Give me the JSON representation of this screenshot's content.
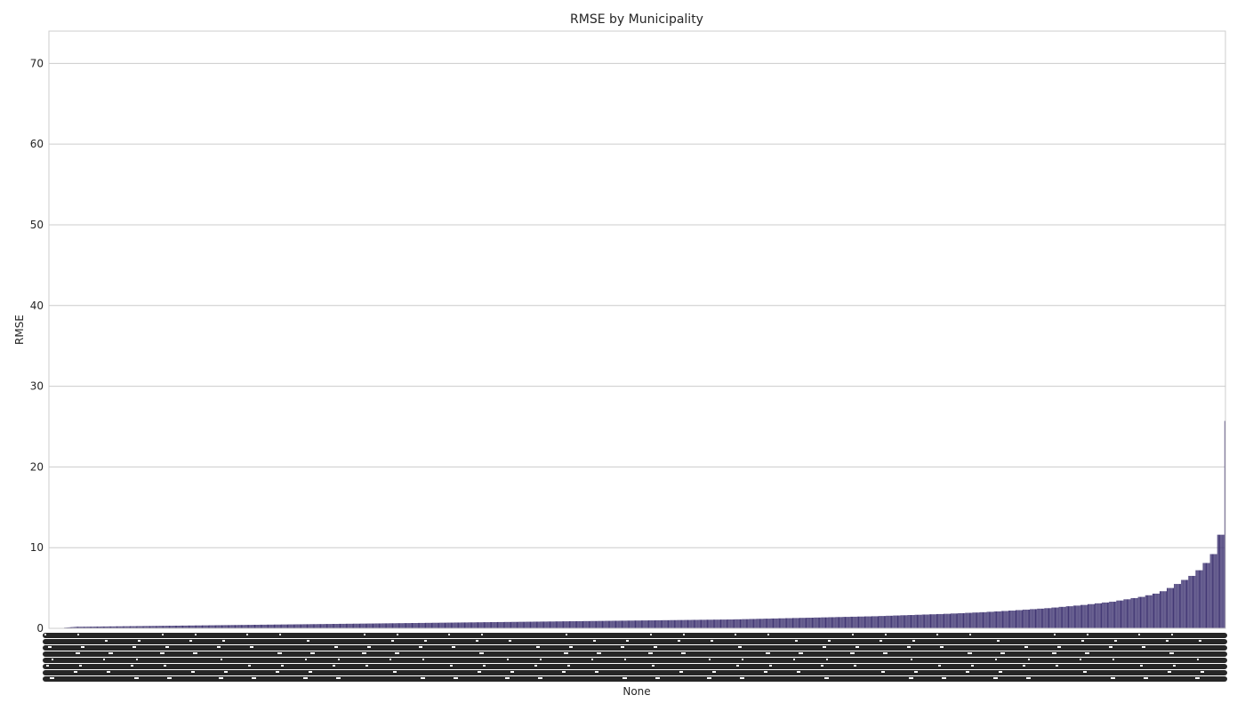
{
  "chart_data": {
    "type": "bar",
    "title": "RMSE by Municipality",
    "xlabel": "None",
    "ylabel": "RMSE",
    "ylim": [
      0,
      74
    ],
    "yticks": [
      0,
      10,
      20,
      30,
      40,
      50,
      60,
      70
    ],
    "grid": "horizontal",
    "bar_color": "#3f3472",
    "x_tick_labels": "dense, illegible",
    "values": [
      0.08,
      0.09,
      0.1,
      0.11,
      0.12,
      0.13,
      0.14,
      0.15,
      0.16,
      0.17,
      0.18,
      0.19,
      0.2,
      0.2,
      0.2,
      0.2,
      0.2,
      0.2,
      0.2,
      0.2,
      0.2,
      0.2,
      0.21,
      0.21,
      0.21,
      0.21,
      0.21,
      0.21,
      0.21,
      0.22,
      0.22,
      0.22,
      0.22,
      0.22,
      0.22,
      0.22,
      0.23,
      0.23,
      0.23,
      0.23,
      0.23,
      0.23,
      0.23,
      0.24,
      0.24,
      0.24,
      0.24,
      0.24,
      0.24,
      0.24,
      0.25,
      0.25,
      0.25,
      0.25,
      0.25,
      0.25,
      0.25,
      0.26,
      0.26,
      0.26,
      0.26,
      0.26,
      0.26,
      0.26,
      0.27,
      0.27,
      0.27,
      0.27,
      0.27,
      0.27,
      0.27,
      0.28,
      0.28,
      0.28,
      0.28,
      0.28,
      0.28,
      0.28,
      0.29,
      0.29,
      0.29,
      0.29,
      0.29,
      0.29,
      0.29,
      0.3,
      0.3,
      0.3,
      0.3,
      0.3,
      0.3,
      0.3,
      0.31,
      0.31,
      0.31,
      0.31,
      0.31,
      0.31,
      0.31,
      0.32,
      0.32,
      0.32,
      0.32,
      0.32,
      0.32,
      0.32,
      0.33,
      0.33,
      0.33,
      0.33,
      0.33,
      0.33,
      0.33,
      0.34,
      0.34,
      0.34,
      0.34,
      0.34,
      0.34,
      0.34,
      0.35,
      0.35,
      0.35,
      0.35,
      0.35,
      0.35,
      0.35,
      0.36,
      0.36,
      0.36,
      0.36,
      0.36,
      0.36,
      0.36,
      0.37,
      0.37,
      0.37,
      0.37,
      0.37,
      0.37,
      0.37,
      0.38,
      0.38,
      0.38,
      0.38,
      0.38,
      0.38,
      0.38,
      0.39,
      0.39,
      0.39,
      0.39,
      0.39,
      0.39,
      0.39,
      0.4,
      0.4,
      0.4,
      0.4,
      0.4,
      0.4,
      0.4,
      0.41,
      0.41,
      0.41,
      0.41,
      0.41,
      0.41,
      0.41,
      0.42,
      0.42,
      0.42,
      0.42,
      0.42,
      0.42,
      0.42,
      0.43,
      0.43,
      0.43,
      0.43,
      0.43,
      0.43,
      0.43,
      0.44,
      0.44,
      0.44,
      0.44,
      0.44,
      0.44,
      0.44,
      0.45,
      0.45,
      0.45,
      0.45,
      0.45,
      0.45,
      0.45,
      0.46,
      0.46,
      0.46,
      0.46,
      0.46,
      0.46,
      0.46,
      0.47,
      0.47,
      0.47,
      0.47,
      0.47,
      0.47,
      0.47,
      0.48,
      0.48,
      0.48,
      0.48,
      0.48,
      0.48,
      0.48,
      0.49,
      0.49,
      0.49,
      0.49,
      0.49,
      0.49,
      0.49,
      0.5,
      0.5,
      0.5,
      0.5,
      0.5,
      0.5,
      0.5,
      0.51,
      0.51,
      0.51,
      0.51,
      0.51,
      0.51,
      0.51,
      0.52,
      0.52,
      0.52,
      0.52,
      0.52,
      0.52,
      0.52,
      0.53,
      0.53,
      0.53,
      0.53,
      0.53,
      0.53,
      0.53,
      0.54,
      0.54,
      0.54,
      0.54,
      0.54,
      0.54,
      0.54,
      0.55,
      0.55,
      0.55,
      0.55,
      0.55,
      0.55,
      0.55,
      0.56,
      0.56,
      0.56,
      0.56,
      0.56,
      0.56,
      0.56,
      0.57,
      0.57,
      0.57,
      0.57,
      0.57,
      0.57,
      0.57,
      0.58,
      0.58,
      0.58,
      0.58,
      0.58,
      0.58,
      0.58,
      0.59,
      0.59,
      0.59,
      0.59,
      0.59,
      0.59,
      0.59,
      0.6,
      0.6,
      0.6,
      0.6,
      0.6,
      0.6,
      0.6,
      0.61,
      0.61,
      0.61,
      0.61,
      0.61,
      0.61,
      0.61,
      0.62,
      0.62,
      0.62,
      0.62,
      0.62,
      0.62,
      0.62,
      0.63,
      0.63,
      0.63,
      0.63,
      0.63,
      0.63,
      0.63,
      0.64,
      0.64,
      0.64,
      0.64,
      0.64,
      0.64,
      0.64,
      0.65,
      0.65,
      0.65,
      0.65,
      0.65,
      0.65,
      0.65,
      0.66,
      0.66,
      0.66,
      0.66,
      0.66,
      0.66,
      0.66,
      0.67,
      0.67,
      0.67,
      0.67,
      0.67,
      0.67,
      0.67,
      0.68,
      0.68,
      0.68,
      0.68,
      0.68,
      0.68,
      0.68,
      0.69,
      0.69,
      0.69,
      0.69,
      0.69,
      0.69,
      0.69,
      0.7,
      0.7,
      0.7,
      0.7,
      0.7,
      0.7,
      0.7,
      0.71,
      0.71,
      0.71,
      0.71,
      0.71,
      0.71,
      0.71,
      0.72,
      0.72,
      0.72,
      0.72,
      0.72,
      0.72,
      0.72,
      0.73,
      0.73,
      0.73,
      0.73,
      0.73,
      0.73,
      0.73,
      0.74,
      0.74,
      0.74,
      0.74,
      0.74,
      0.74,
      0.74,
      0.75,
      0.75,
      0.75,
      0.75,
      0.75,
      0.75,
      0.75,
      0.76,
      0.76,
      0.76,
      0.76,
      0.76,
      0.76,
      0.76,
      0.77,
      0.77,
      0.77,
      0.77,
      0.77,
      0.77,
      0.77,
      0.78,
      0.78,
      0.78,
      0.78,
      0.78,
      0.78,
      0.78,
      0.79,
      0.79,
      0.79,
      0.79,
      0.79,
      0.79,
      0.79,
      0.8,
      0.8,
      0.8,
      0.8,
      0.8,
      0.8,
      0.8,
      0.81,
      0.81,
      0.81,
      0.81,
      0.81,
      0.81,
      0.81,
      0.82,
      0.82,
      0.82,
      0.82,
      0.82,
      0.82,
      0.82,
      0.83,
      0.83,
      0.83,
      0.83,
      0.83,
      0.83,
      0.83,
      0.84,
      0.84,
      0.84,
      0.84,
      0.84,
      0.84,
      0.84,
      0.85,
      0.85,
      0.85,
      0.85,
      0.85,
      0.85,
      0.85,
      0.86,
      0.86,
      0.86,
      0.86,
      0.86,
      0.86,
      0.86,
      0.87,
      0.87,
      0.87,
      0.87,
      0.87,
      0.87,
      0.87,
      0.88,
      0.88,
      0.88,
      0.88,
      0.88,
      0.88,
      0.88,
      0.89,
      0.89,
      0.89,
      0.89,
      0.89,
      0.89,
      0.89,
      0.9,
      0.9,
      0.9,
      0.9,
      0.9,
      0.9,
      0.9,
      0.91,
      0.91,
      0.91,
      0.91,
      0.91,
      0.91,
      0.91,
      0.92,
      0.92,
      0.92,
      0.92,
      0.92,
      0.92,
      0.92,
      0.93,
      0.93,
      0.93,
      0.93,
      0.93,
      0.93,
      0.93,
      0.94,
      0.94,
      0.94,
      0.94,
      0.94,
      0.94,
      0.94,
      0.95,
      0.95,
      0.95,
      0.95,
      0.95,
      0.95,
      0.95,
      0.96,
      0.96,
      0.96,
      0.96,
      0.96,
      0.96,
      0.96,
      0.97,
      0.97,
      0.97,
      0.97,
      0.97,
      0.97,
      0.97,
      0.98,
      0.98,
      0.98,
      0.98,
      0.98,
      0.98,
      0.98,
      0.99,
      0.99,
      0.99,
      0.99,
      0.99,
      0.99,
      0.99,
      1.0,
      1.0,
      1.0,
      1.0,
      1.0,
      1.0,
      1.0,
      1.01,
      1.01,
      1.01,
      1.01,
      1.01,
      1.01,
      1.01,
      1.02,
      1.02,
      1.02,
      1.02,
      1.02,
      1.02,
      1.02,
      1.03,
      1.03,
      1.03,
      1.03,
      1.03,
      1.03,
      1.03,
      1.04,
      1.04,
      1.04,
      1.04,
      1.04,
      1.04,
      1.04,
      1.05,
      1.05,
      1.05,
      1.05,
      1.05,
      1.05,
      1.05,
      1.06,
      1.06,
      1.06,
      1.06,
      1.06,
      1.06,
      1.06,
      1.07,
      1.07,
      1.07,
      1.07,
      1.07,
      1.07,
      1.07,
      1.08,
      1.08,
      1.08,
      1.08,
      1.08,
      1.08,
      1.08,
      1.09,
      1.09,
      1.09,
      1.09,
      1.09,
      1.09,
      1.09,
      1.1,
      1.1,
      1.1,
      1.1,
      1.1,
      1.1,
      1.1,
      1.12,
      1.12,
      1.12,
      1.12,
      1.12,
      1.12,
      1.12,
      1.14,
      1.14,
      1.14,
      1.14,
      1.14,
      1.14,
      1.14,
      1.16,
      1.16,
      1.16,
      1.16,
      1.16,
      1.16,
      1.16,
      1.18,
      1.18,
      1.18,
      1.18,
      1.18,
      1.18,
      1.18,
      1.2,
      1.2,
      1.2,
      1.2,
      1.2,
      1.2,
      1.2,
      1.22,
      1.22,
      1.22,
      1.22,
      1.22,
      1.22,
      1.22,
      1.24,
      1.24,
      1.24,
      1.24,
      1.24,
      1.24,
      1.24,
      1.26,
      1.26,
      1.26,
      1.26,
      1.26,
      1.26,
      1.26,
      1.28,
      1.28,
      1.28,
      1.28,
      1.28,
      1.28,
      1.28,
      1.3,
      1.3,
      1.3,
      1.3,
      1.3,
      1.3,
      1.3,
      1.32,
      1.32,
      1.32,
      1.32,
      1.32,
      1.32,
      1.32,
      1.34,
      1.34,
      1.34,
      1.34,
      1.34,
      1.34,
      1.34,
      1.36,
      1.36,
      1.36,
      1.36,
      1.36,
      1.36,
      1.36,
      1.38,
      1.38,
      1.38,
      1.38,
      1.38,
      1.38,
      1.38,
      1.4,
      1.4,
      1.4,
      1.4,
      1.4,
      1.4,
      1.4,
      1.42,
      1.42,
      1.42,
      1.42,
      1.42,
      1.42,
      1.42,
      1.44,
      1.44,
      1.44,
      1.44,
      1.44,
      1.44,
      1.44,
      1.46,
      1.46,
      1.46,
      1.46,
      1.46,
      1.46,
      1.46,
      1.48,
      1.48,
      1.48,
      1.48,
      1.48,
      1.48,
      1.48,
      1.5,
      1.5,
      1.5,
      1.5,
      1.5,
      1.5,
      1.5,
      1.53,
      1.53,
      1.53,
      1.53,
      1.53,
      1.53,
      1.53,
      1.56,
      1.56,
      1.56,
      1.56,
      1.56,
      1.56,
      1.56,
      1.59,
      1.59,
      1.59,
      1.59,
      1.59,
      1.59,
      1.59,
      1.62,
      1.62,
      1.62,
      1.62,
      1.62,
      1.62,
      1.62,
      1.65,
      1.65,
      1.65,
      1.65,
      1.65,
      1.65,
      1.65,
      1.68,
      1.68,
      1.68,
      1.68,
      1.68,
      1.68,
      1.68,
      1.71,
      1.71,
      1.71,
      1.71,
      1.71,
      1.71,
      1.71,
      1.74,
      1.74,
      1.74,
      1.74,
      1.74,
      1.74,
      1.74,
      1.77,
      1.77,
      1.77,
      1.77,
      1.77,
      1.77,
      1.77,
      1.8,
      1.8,
      1.8,
      1.8,
      1.8,
      1.8,
      1.8,
      1.84,
      1.84,
      1.84,
      1.84,
      1.84,
      1.84,
      1.84,
      1.88,
      1.88,
      1.88,
      1.88,
      1.88,
      1.88,
      1.88,
      1.92,
      1.92,
      1.92,
      1.92,
      1.92,
      1.92,
      1.92,
      1.96,
      1.96,
      1.96,
      1.96,
      1.96,
      1.96,
      1.96,
      2.0,
      2.0,
      2.0,
      2.0,
      2.0,
      2.0,
      2.0,
      2.05,
      2.05,
      2.05,
      2.05,
      2.05,
      2.05,
      2.05,
      2.1,
      2.1,
      2.1,
      2.1,
      2.1,
      2.1,
      2.1,
      2.15,
      2.15,
      2.15,
      2.15,
      2.15,
      2.15,
      2.15,
      2.2,
      2.2,
      2.2,
      2.2,
      2.2,
      2.2,
      2.2,
      2.26,
      2.26,
      2.26,
      2.26,
      2.26,
      2.26,
      2.26,
      2.32,
      2.32,
      2.32,
      2.32,
      2.32,
      2.32,
      2.32,
      2.38,
      2.38,
      2.38,
      2.38,
      2.38,
      2.38,
      2.38,
      2.44,
      2.44,
      2.44,
      2.44,
      2.44,
      2.44,
      2.44,
      2.5,
      2.5,
      2.5,
      2.5,
      2.5,
      2.5,
      2.5,
      2.58,
      2.58,
      2.58,
      2.58,
      2.58,
      2.58,
      2.58,
      2.66,
      2.66,
      2.66,
      2.66,
      2.66,
      2.66,
      2.66,
      2.74,
      2.74,
      2.74,
      2.74,
      2.74,
      2.74,
      2.74,
      2.82,
      2.82,
      2.82,
      2.82,
      2.82,
      2.82,
      2.82,
      2.9,
      2.9,
      2.9,
      2.9,
      2.9,
      2.9,
      2.9,
      3.0,
      3.0,
      3.0,
      3.0,
      3.0,
      3.0,
      3.0,
      3.1,
      3.1,
      3.1,
      3.1,
      3.1,
      3.1,
      3.1,
      3.2,
      3.2,
      3.2,
      3.2,
      3.2,
      3.2,
      3.2,
      3.3,
      3.3,
      3.3,
      3.3,
      3.3,
      3.3,
      3.3,
      3.45,
      3.45,
      3.45,
      3.45,
      3.45,
      3.45,
      3.45,
      3.6,
      3.6,
      3.6,
      3.6,
      3.6,
      3.6,
      3.6,
      3.75,
      3.75,
      3.75,
      3.75,
      3.75,
      3.75,
      3.75,
      3.9,
      3.9,
      3.9,
      3.9,
      3.9,
      3.9,
      3.9,
      4.1,
      4.1,
      4.1,
      4.1,
      4.1,
      4.1,
      4.1,
      4.3,
      4.3,
      4.3,
      4.3,
      4.3,
      4.3,
      4.3,
      4.6,
      4.6,
      4.6,
      4.6,
      4.6,
      4.6,
      4.6,
      5.0,
      5.0,
      5.0,
      5.0,
      5.0,
      5.0,
      5.0,
      5.5,
      5.5,
      5.5,
      5.5,
      5.5,
      5.5,
      5.5,
      6.0,
      6.0,
      6.0,
      6.0,
      6.0,
      6.0,
      6.0,
      6.5,
      6.5,
      6.5,
      6.5,
      6.5,
      6.5,
      6.5,
      7.2,
      7.2,
      7.2,
      7.2,
      7.2,
      7.2,
      7.2,
      8.1,
      8.1,
      8.1,
      8.1,
      8.1,
      8.1,
      8.1,
      9.2,
      9.2,
      9.2,
      9.2,
      9.2,
      9.2,
      9.2,
      11.6,
      11.6,
      11.6,
      11.6,
      11.6,
      11.6,
      11.6,
      25.7
    ]
  }
}
